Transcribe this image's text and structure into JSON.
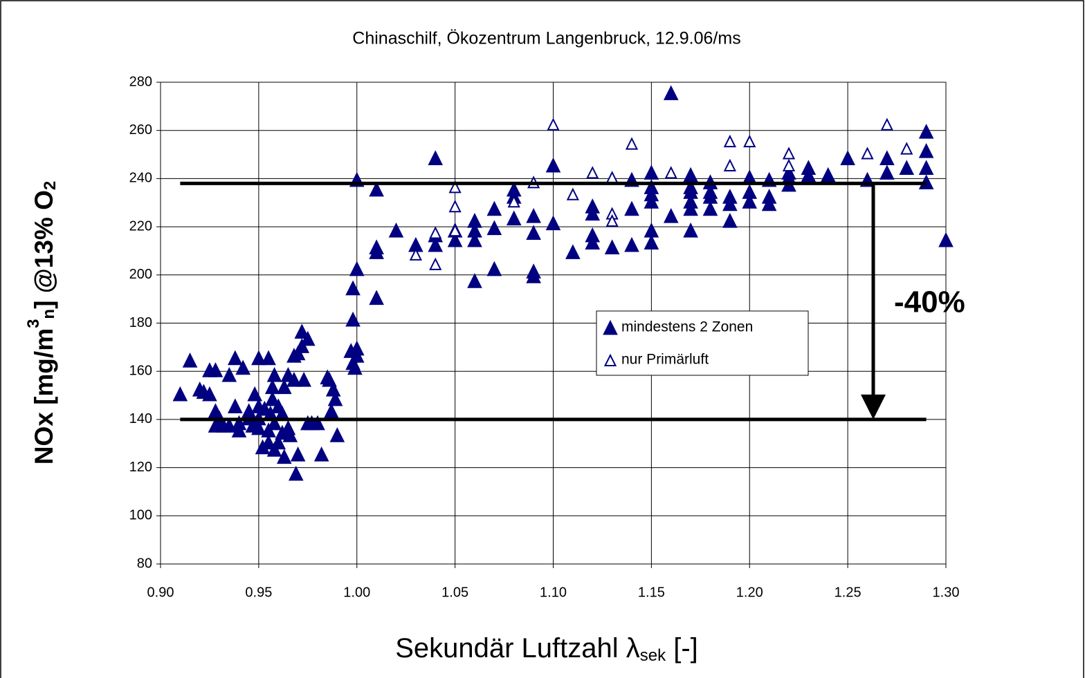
{
  "chart_data": {
    "type": "scatter",
    "title": "Chinaschilf, Ökozentrum Langenbruck, 12.9.06/ms",
    "xlabel": [
      "Sekundär Luftzahl λ",
      "sek",
      " [-]"
    ],
    "ylabel": [
      "NOx [mg/m",
      "3",
      "n",
      "] @13% O",
      "2"
    ],
    "xlim": [
      0.9,
      1.3
    ],
    "ylim": [
      80,
      280
    ],
    "xticks": [
      {
        "value": 0.9,
        "label": "0.90"
      },
      {
        "value": 0.95,
        "label": "0.95"
      },
      {
        "value": 1.0,
        "label": "1.00"
      },
      {
        "value": 1.05,
        "label": "1.05"
      },
      {
        "value": 1.1,
        "label": "1.10"
      },
      {
        "value": 1.15,
        "label": "1.15"
      },
      {
        "value": 1.2,
        "label": "1.20"
      },
      {
        "value": 1.25,
        "label": "1.25"
      },
      {
        "value": 1.3,
        "label": "1.30"
      }
    ],
    "yticks": [
      80,
      100,
      120,
      140,
      160,
      180,
      200,
      220,
      240,
      260,
      280
    ],
    "grid": true,
    "hlines": [
      {
        "y": 238,
        "x": [
          0.91,
          1.29
        ]
      },
      {
        "y": 140,
        "x": [
          0.91,
          1.29
        ]
      }
    ],
    "arrow": {
      "x": 1.263,
      "from": 238,
      "to": 140
    },
    "annotation": "-40%",
    "series": [
      {
        "name": "mindestens 2 Zonen",
        "color": "#000080",
        "marker": "filled",
        "x": [
          0.91,
          0.915,
          0.92,
          0.922,
          0.925,
          0.925,
          0.928,
          0.928,
          0.928,
          0.93,
          0.932,
          0.935,
          0.935,
          0.938,
          0.938,
          0.94,
          0.94,
          0.942,
          0.945,
          0.945,
          0.947,
          0.948,
          0.95,
          0.95,
          0.95,
          0.95,
          0.952,
          0.953,
          0.955,
          0.955,
          0.955,
          0.956,
          0.957,
          0.957,
          0.958,
          0.958,
          0.958,
          0.96,
          0.96,
          0.962,
          0.962,
          0.963,
          0.963,
          0.965,
          0.965,
          0.966,
          0.968,
          0.968,
          0.969,
          0.97,
          0.97,
          0.972,
          0.972,
          0.973,
          0.975,
          0.975,
          0.977,
          0.98,
          0.982,
          0.985,
          0.986,
          0.987,
          0.988,
          0.989,
          0.99,
          0.997,
          0.998,
          0.998,
          0.998,
          0.999,
          1.0,
          1.0,
          1.0,
          1.0,
          1.01,
          1.01,
          1.01,
          1.01,
          1.02,
          1.03,
          1.04,
          1.04,
          1.04,
          1.05,
          1.05,
          1.06,
          1.06,
          1.06,
          1.06,
          1.07,
          1.07,
          1.07,
          1.08,
          1.08,
          1.08,
          1.09,
          1.09,
          1.09,
          1.09,
          1.1,
          1.1,
          1.11,
          1.12,
          1.12,
          1.12,
          1.12,
          1.13,
          1.14,
          1.14,
          1.14,
          1.15,
          1.15,
          1.15,
          1.15,
          1.15,
          1.15,
          1.16,
          1.16,
          1.17,
          1.17,
          1.17,
          1.17,
          1.17,
          1.17,
          1.18,
          1.18,
          1.18,
          1.18,
          1.19,
          1.19,
          1.19,
          1.2,
          1.2,
          1.2,
          1.21,
          1.21,
          1.21,
          1.22,
          1.22,
          1.22,
          1.23,
          1.23,
          1.24,
          1.25,
          1.26,
          1.27,
          1.27,
          1.28,
          1.29,
          1.29,
          1.29,
          1.29,
          1.3
        ],
        "values": [
          150,
          164,
          152,
          151,
          160,
          150,
          160,
          143,
          137,
          140,
          137,
          158,
          137,
          165,
          145,
          135,
          138,
          161,
          140,
          143,
          137,
          150,
          165,
          145,
          140,
          136,
          128,
          144,
          165,
          135,
          130,
          142,
          148,
          153,
          158,
          138,
          127,
          145,
          130,
          142,
          134,
          153,
          124,
          158,
          136,
          133,
          156,
          166,
          117,
          125,
          167,
          170,
          176,
          156,
          173,
          138,
          138,
          138,
          125,
          157,
          156,
          143,
          152,
          148,
          133,
          168,
          163,
          181,
          194,
          161,
          166,
          169,
          202,
          239,
          235,
          211,
          209,
          190,
          218,
          212,
          248,
          216,
          212,
          214,
          218,
          222,
          218,
          214,
          197,
          227,
          219,
          202,
          235,
          232,
          223,
          224,
          217,
          201,
          199,
          245,
          221,
          209,
          228,
          225,
          216,
          213,
          211,
          239,
          227,
          212,
          242,
          236,
          233,
          230,
          218,
          213,
          275,
          224,
          241,
          236,
          234,
          230,
          227,
          218,
          238,
          234,
          232,
          227,
          232,
          229,
          222,
          240,
          234,
          230,
          232,
          229,
          239,
          242,
          240,
          237,
          244,
          241,
          241,
          248,
          239,
          248,
          242,
          244,
          259,
          251,
          244,
          238,
          214
        ]
      },
      {
        "name": "nur Primärluft",
        "color": "#000080",
        "marker": "open",
        "x": [
          1.03,
          1.04,
          1.04,
          1.05,
          1.05,
          1.05,
          1.08,
          1.09,
          1.1,
          1.11,
          1.12,
          1.13,
          1.13,
          1.13,
          1.14,
          1.16,
          1.19,
          1.19,
          1.2,
          1.22,
          1.22,
          1.26,
          1.27,
          1.28
        ],
        "values": [
          208,
          217,
          204,
          236,
          228,
          218,
          230,
          238,
          262,
          233,
          242,
          240,
          225,
          222,
          254,
          242,
          255,
          245,
          255,
          250,
          245,
          250,
          262,
          252
        ]
      }
    ]
  }
}
